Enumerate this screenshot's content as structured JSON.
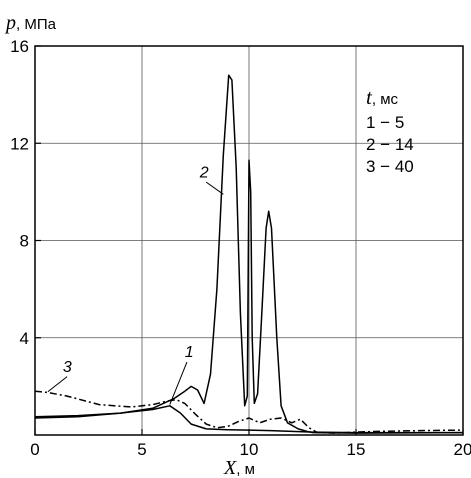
{
  "chart_data": {
    "type": "line",
    "ylabel": "p",
    "ylabel_unit": "МПа",
    "xlabel": "X",
    "xlabel_unit": "м",
    "xlim": [
      0,
      20
    ],
    "ylim": [
      0,
      16
    ],
    "x_ticks": [
      0,
      5,
      10,
      15,
      20
    ],
    "y_ticks": [
      4,
      8,
      12,
      16
    ],
    "x_tick_labels": [
      "0",
      "5",
      "10",
      "15",
      "20"
    ],
    "y_tick_labels": [
      "4",
      "8",
      "12",
      "16"
    ],
    "grid": true,
    "legend": {
      "title_symbol": "t",
      "title_unit": "мс",
      "position": "top-right",
      "entries": [
        "1 − 5",
        "2 − 14",
        "3 − 40"
      ]
    },
    "series": [
      {
        "name": "1",
        "style": "solid",
        "points": [
          [
            0,
            0.75
          ],
          [
            2,
            0.8
          ],
          [
            4,
            0.9
          ],
          [
            5.5,
            1.05
          ],
          [
            6.3,
            1.2
          ],
          [
            6.8,
            0.9
          ],
          [
            7.3,
            0.45
          ],
          [
            8,
            0.25
          ],
          [
            9,
            0.22
          ],
          [
            10,
            0.2
          ],
          [
            11,
            0.18
          ],
          [
            12,
            0.15
          ],
          [
            13,
            0.12
          ],
          [
            15,
            0.1
          ],
          [
            20,
            0.1
          ]
        ]
      },
      {
        "name": "2",
        "style": "solid",
        "points": [
          [
            0,
            0.7
          ],
          [
            2,
            0.75
          ],
          [
            4,
            0.9
          ],
          [
            5.5,
            1.1
          ],
          [
            6.5,
            1.5
          ],
          [
            7,
            1.8
          ],
          [
            7.3,
            2.0
          ],
          [
            7.6,
            1.85
          ],
          [
            7.9,
            1.3
          ],
          [
            8.2,
            2.5
          ],
          [
            8.5,
            6.0
          ],
          [
            8.8,
            11.5
          ],
          [
            9.05,
            14.8
          ],
          [
            9.2,
            14.6
          ],
          [
            9.4,
            11.0
          ],
          [
            9.6,
            5.0
          ],
          [
            9.8,
            1.2
          ],
          [
            9.92,
            1.6
          ],
          [
            10.0,
            11.3
          ],
          [
            10.08,
            10.0
          ],
          [
            10.15,
            4.0
          ],
          [
            10.25,
            1.3
          ],
          [
            10.4,
            1.7
          ],
          [
            10.6,
            5.0
          ],
          [
            10.8,
            8.5
          ],
          [
            10.92,
            9.2
          ],
          [
            11.05,
            8.5
          ],
          [
            11.3,
            4.0
          ],
          [
            11.5,
            1.2
          ],
          [
            11.8,
            0.5
          ],
          [
            12.3,
            0.25
          ],
          [
            12.7,
            0.15
          ],
          [
            13,
            0.1
          ],
          [
            15,
            0.08
          ],
          [
            20,
            0.1
          ]
        ]
      },
      {
        "name": "3",
        "style": "dash-dot",
        "points": [
          [
            0,
            1.8
          ],
          [
            0.6,
            1.75
          ],
          [
            1.5,
            1.6
          ],
          [
            3,
            1.25
          ],
          [
            4.5,
            1.15
          ],
          [
            5.5,
            1.25
          ],
          [
            6.2,
            1.4
          ],
          [
            6.6,
            1.45
          ],
          [
            7,
            1.3
          ],
          [
            7.5,
            0.85
          ],
          [
            8,
            0.45
          ],
          [
            8.5,
            0.3
          ],
          [
            9,
            0.35
          ],
          [
            9.5,
            0.55
          ],
          [
            10,
            0.7
          ],
          [
            10.5,
            0.5
          ],
          [
            11,
            0.65
          ],
          [
            11.5,
            0.7
          ],
          [
            12,
            0.5
          ],
          [
            12.4,
            0.65
          ],
          [
            12.8,
            0.3
          ],
          [
            13.2,
            0.1
          ],
          [
            14,
            0.08
          ],
          [
            15,
            0.12
          ],
          [
            16,
            0.15
          ],
          [
            18,
            0.18
          ],
          [
            20,
            0.2
          ]
        ]
      }
    ],
    "curve_labels": [
      {
        "text": "1",
        "x": 7.0,
        "y": 3.2
      },
      {
        "text": "2",
        "x": 7.7,
        "y": 10.6
      },
      {
        "text": "3",
        "x": 1.3,
        "y": 2.6
      }
    ]
  }
}
